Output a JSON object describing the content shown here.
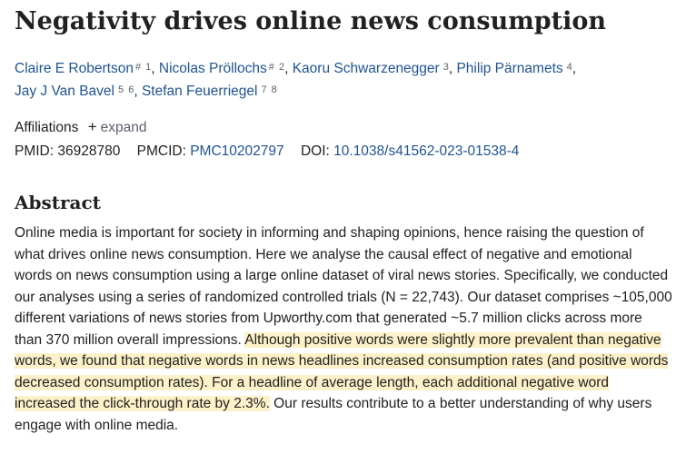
{
  "article": {
    "title": "Negativity drives online news consumption"
  },
  "authors": [
    {
      "name": "Claire E Robertson",
      "marks": [
        "#",
        "1"
      ]
    },
    {
      "name": "Nicolas Pröllochs",
      "marks": [
        "#",
        "2"
      ]
    },
    {
      "name": "Kaoru Schwarzenegger",
      "marks": [
        "3"
      ]
    },
    {
      "name": "Philip Pärnamets",
      "marks": [
        "4"
      ]
    },
    {
      "name": "Jay J Van Bavel",
      "marks": [
        "5",
        "6"
      ]
    },
    {
      "name": "Stefan Feuerriegel",
      "marks": [
        "7",
        "8"
      ]
    }
  ],
  "affiliations": {
    "label": "Affiliations",
    "expand_icon": "plus-icon",
    "expand_label": "expand"
  },
  "identifiers": {
    "pmid_label": "PMID:",
    "pmid": "36928780",
    "pmcid_label": "PMCID:",
    "pmcid": "PMC10202797",
    "doi_label": "DOI:",
    "doi": "10.1038/s41562-023-01538-4"
  },
  "abstract": {
    "heading": "Abstract",
    "text_before": "Online media is important for society in informing and shaping opinions, hence raising the question of what drives online news consumption. Here we analyse the causal effect of negative and emotional words on news consumption using a large online dataset of viral news stories. Specifically, we conducted our analyses using a series of randomized controlled trials (N = 22,743). Our dataset comprises ~105,000 different variations of news stories from Upworthy.com that generated ~5.7 million clicks across more than 370 million overall impressions. ",
    "text_highlighted": "Although positive words were slightly more prevalent than negative words, we found that negative words in news headlines increased consumption rates (and positive words decreased consumption rates). For a headline of average length, each additional negative word increased the click-through rate by 2.3%.",
    "text_after": " Our results contribute to a better understanding of why users engage with online media."
  },
  "colors": {
    "link": "#205493",
    "text": "#212121",
    "highlight": "#fcf1c8",
    "muted": "#5b616b"
  }
}
